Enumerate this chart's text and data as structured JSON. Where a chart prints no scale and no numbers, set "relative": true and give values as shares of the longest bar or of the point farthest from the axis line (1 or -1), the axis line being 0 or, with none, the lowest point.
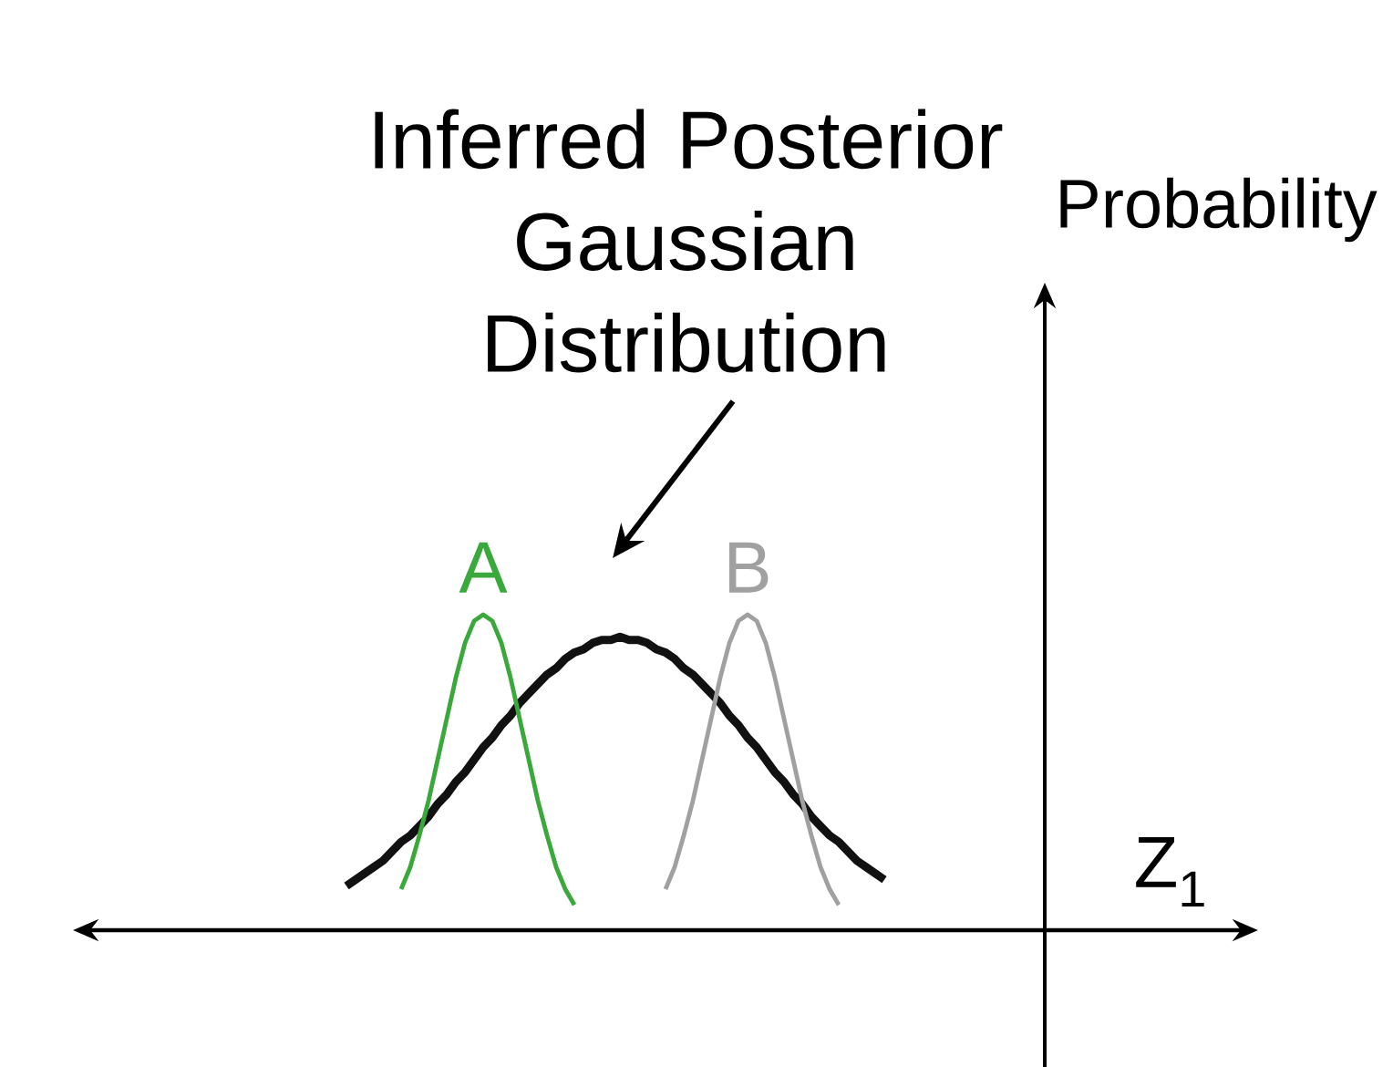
{
  "chart_data": {
    "type": "line",
    "relative": true,
    "xlabel": "Z$_{1}$",
    "annotations": [
      "Inferred Posterior Gaussian Distribution",
      "Probability"
    ],
    "marker": "none",
    "categories": [
      null,
      null,
      null,
      null,
      null,
      null,
      null,
      null,
      null,
      null,
      null,
      null,
      null,
      null,
      null,
      null,
      null,
      null,
      null,
      null,
      null,
      null,
      null,
      null,
      null,
      null,
      null,
      null,
      null,
      null,
      null,
      null,
      null,
      null,
      null,
      null,
      null,
      null,
      null,
      null,
      null,
      null,
      null,
      null,
      null,
      null,
      null,
      null,
      null,
      null,
      null,
      null,
      null,
      null,
      null,
      null,
      null,
      null,
      null,
      null
    ],
    "series": [
      {
        "color": "#111111",
        "values": [
          0.14,
          0.16,
          0.18,
          0.2,
          0.22,
          0.25,
          0.28,
          0.3,
          0.33,
          0.36,
          0.4,
          0.43,
          0.47,
          0.5,
          0.54,
          0.58,
          0.61,
          0.65,
          0.68,
          0.72,
          0.75,
          0.78,
          0.81,
          0.83,
          0.86,
          0.88,
          0.89,
          0.91,
          0.92,
          0.92,
          0.93,
          0.92,
          0.92,
          0.91,
          0.89,
          0.88,
          0.86,
          0.83,
          0.81,
          0.78,
          0.75,
          0.72,
          0.68,
          0.65,
          0.61,
          0.58,
          0.54,
          0.5,
          0.47,
          0.43,
          0.4,
          0.36,
          0.33,
          0.3,
          0.28,
          0.25,
          0.22,
          0.2,
          0.18,
          0.16
        ]
      },
      {
        "name": "A",
        "color": "#3aa83a",
        "values": [
          null,
          null,
          null,
          null,
          null,
          null,
          0.13,
          0.2,
          0.3,
          0.41,
          0.54,
          0.67,
          0.8,
          0.91,
          0.98,
          1,
          0.98,
          0.91,
          0.8,
          0.67,
          0.54,
          0.41,
          0.3,
          0.2,
          0.13,
          0.08,
          null,
          null,
          null,
          null,
          null,
          null,
          null,
          null,
          null,
          null,
          null,
          null,
          null,
          null,
          null,
          null,
          null,
          null,
          null,
          null,
          null,
          null,
          null,
          null,
          null,
          null,
          null,
          null,
          null,
          null,
          null,
          null,
          null,
          null
        ]
      },
      {
        "name": "B",
        "color": "#a0a0a0",
        "values": [
          null,
          null,
          null,
          null,
          null,
          null,
          null,
          null,
          null,
          null,
          null,
          null,
          null,
          null,
          null,
          null,
          null,
          null,
          null,
          null,
          null,
          null,
          null,
          null,
          null,
          null,
          null,
          null,
          null,
          null,
          null,
          null,
          null,
          null,
          null,
          0.13,
          0.2,
          0.3,
          0.41,
          0.54,
          0.67,
          0.8,
          0.91,
          0.98,
          1,
          0.98,
          0.91,
          0.8,
          0.67,
          0.54,
          0.41,
          0.3,
          0.2,
          0.13,
          0.08,
          null,
          null,
          null,
          null,
          null
        ]
      }
    ]
  }
}
